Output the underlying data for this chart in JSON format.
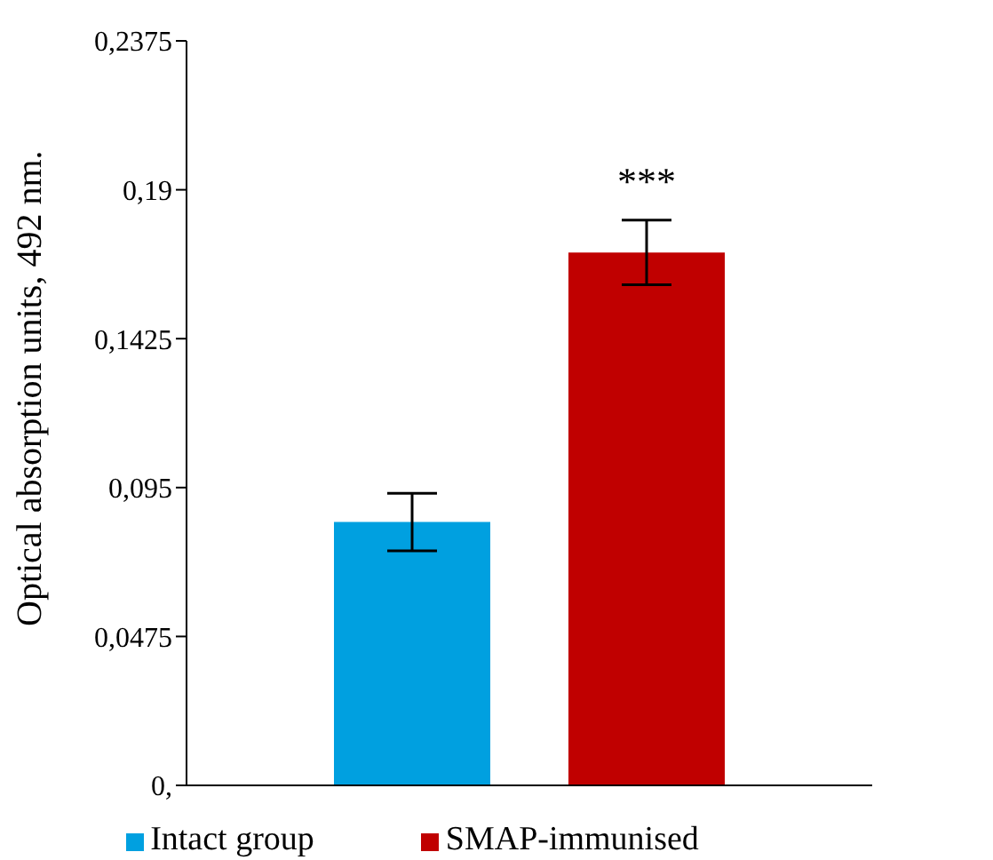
{
  "chart_data": {
    "type": "bar",
    "ylabel": "Optical absorption units, 492 nm.",
    "categories": [
      null
    ],
    "series": [
      {
        "name": "Intact group",
        "color": "#00a0e0",
        "values": [
          0.084
        ],
        "errors": [
          0.0092
        ]
      },
      {
        "name": "SMAP-immunised",
        "color": "#c00000",
        "values": [
          0.17
        ],
        "errors": [
          0.0103
        ]
      }
    ],
    "ylim": [
      0,
      0.2375
    ],
    "yticks": [
      {
        "value": 0,
        "label": "0,"
      },
      {
        "value": 0.0475,
        "label": "0,0475"
      },
      {
        "value": 0.095,
        "label": "0,095"
      },
      {
        "value": 0.1425,
        "label": "0,1425"
      },
      {
        "value": 0.19,
        "label": "0,19"
      },
      {
        "value": 0.2375,
        "label": "0,2375"
      }
    ],
    "annotations": [
      "***"
    ],
    "grid": false,
    "legend": "bottom"
  }
}
